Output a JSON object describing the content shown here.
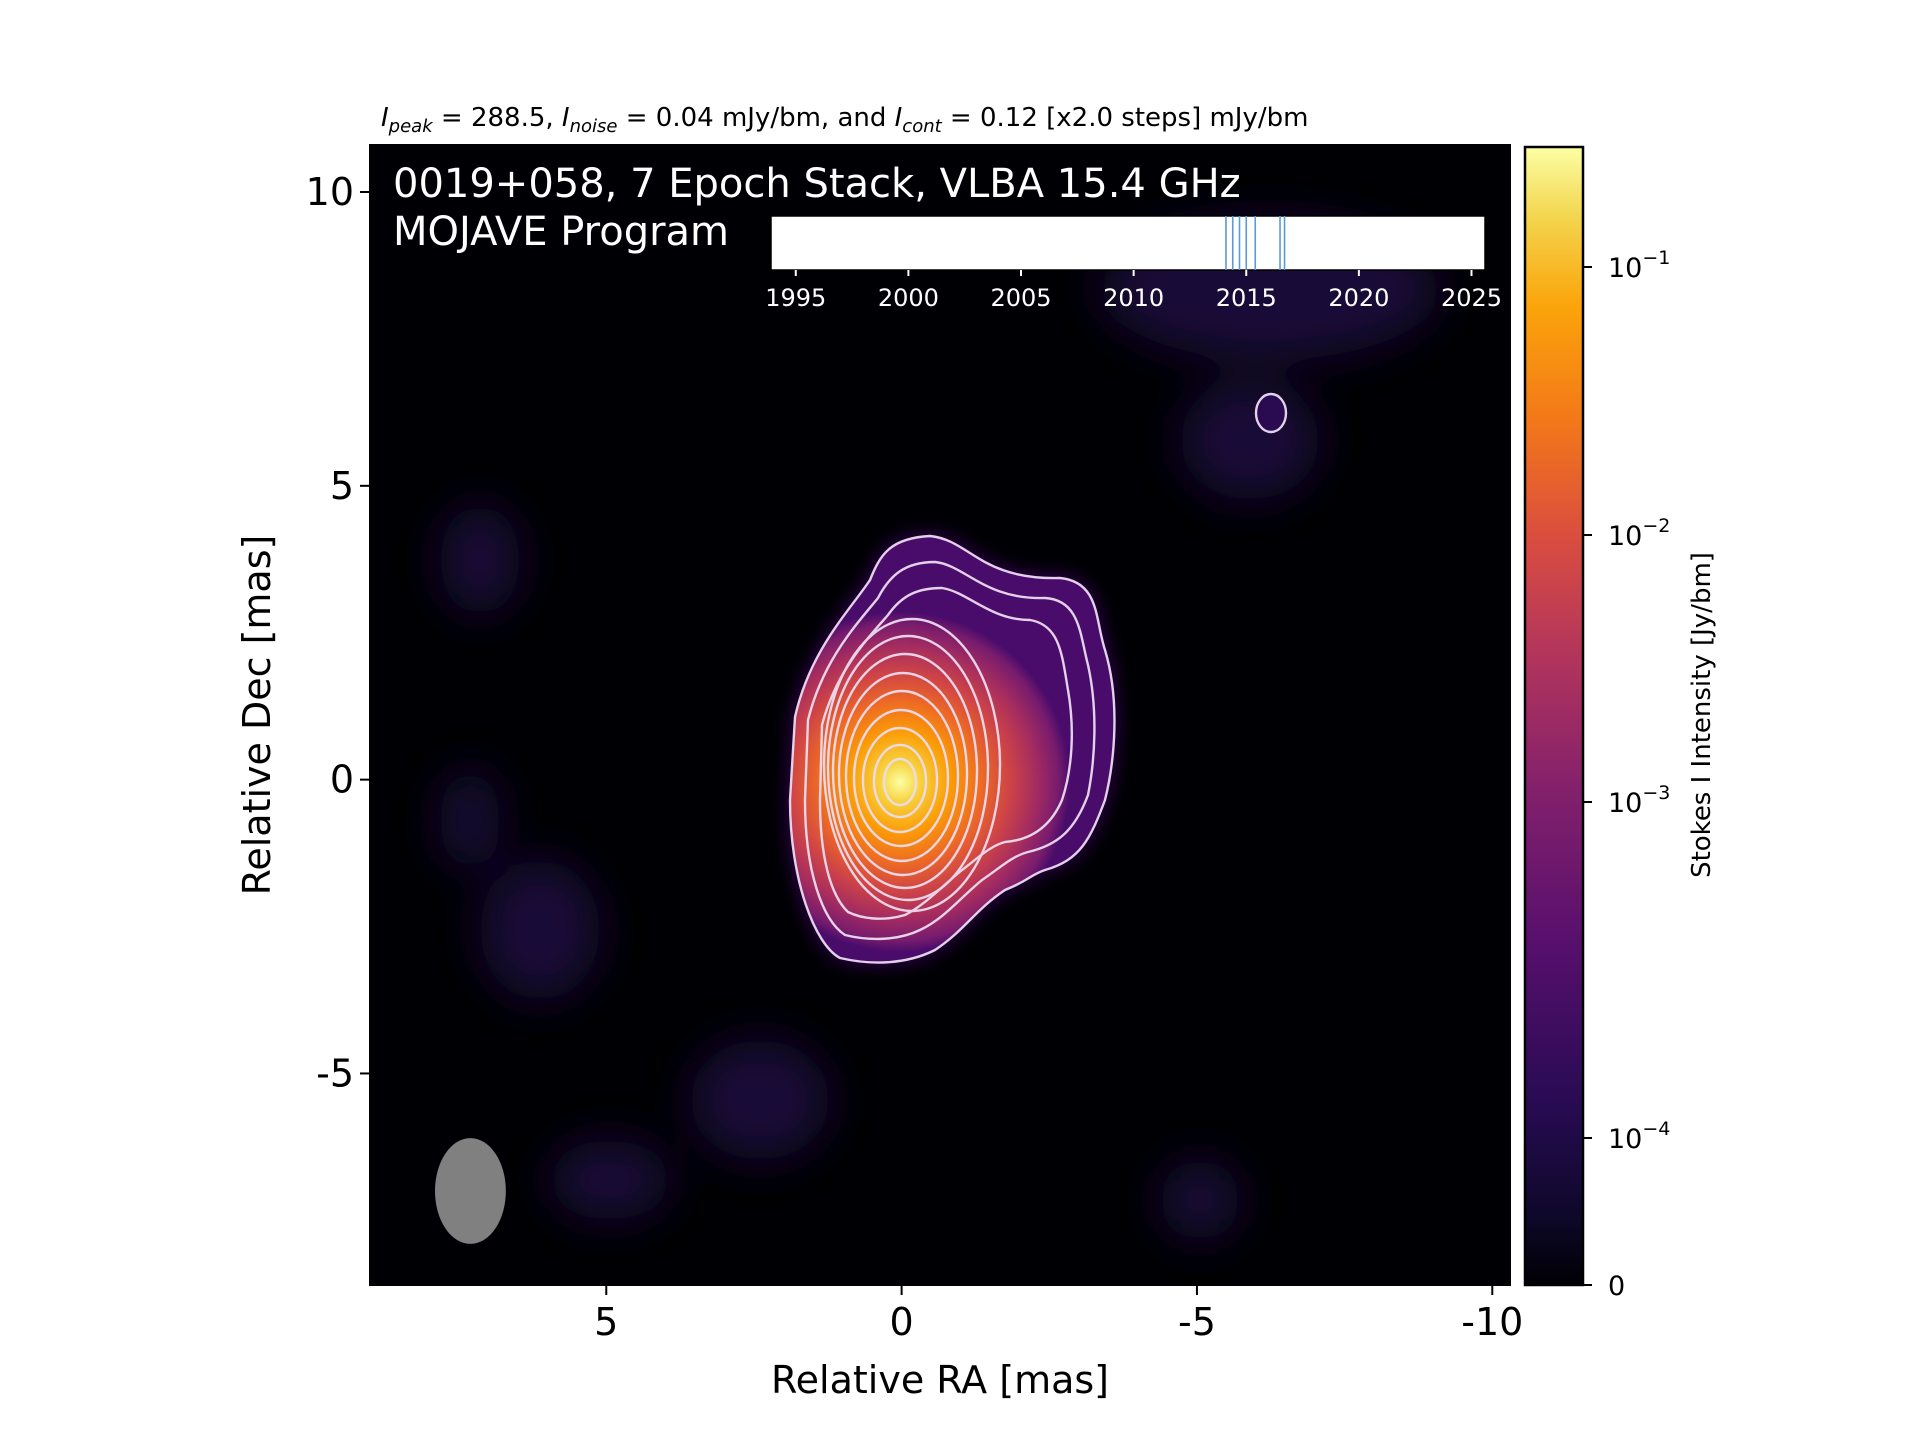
{
  "header": {
    "stats_line": {
      "peak_symbol": "I",
      "peak_sub": "peak",
      "peak_text": " = 288.5, ",
      "noise_symbol": "I",
      "noise_sub": "noise",
      "noise_text": " = 0.04 mJy/bm, and ",
      "cont_symbol": "I",
      "cont_sub": "cont",
      "cont_text": " = 0.12 [x2.0 steps] mJy/bm"
    }
  },
  "overlay": {
    "title_line1": "0019+058, 7 Epoch Stack, VLBA 15.4 GHz",
    "title_line2": "MOJAVE Program"
  },
  "colors": {
    "background": "#000004",
    "contour": "#ecdcf0",
    "beam": "#808080",
    "epoch_marker": "#5b9bd5",
    "colormap": "inferno"
  },
  "chart_data": {
    "type": "heatmap",
    "xlabel": "Relative RA [mas]",
    "ylabel": "Relative Dec [mas]",
    "xlim": [
      9.0,
      -10.3
    ],
    "ylim": [
      -8.6,
      10.8
    ],
    "x_ticks": [
      {
        "value": 5,
        "label": "5"
      },
      {
        "value": 0,
        "label": "0"
      },
      {
        "value": -5,
        "label": "-5"
      },
      {
        "value": -10,
        "label": "-10"
      }
    ],
    "y_ticks": [
      {
        "value": 10,
        "label": "10"
      },
      {
        "value": 5,
        "label": "5"
      },
      {
        "value": 0,
        "label": "0"
      },
      {
        "value": -5,
        "label": "-5"
      }
    ],
    "colorbar": {
      "label": "Stokes I Intensity [Jy/bm]",
      "scale": "log",
      "ticks": [
        {
          "value": 0.1,
          "base": "10",
          "exp": "−1"
        },
        {
          "value": 0.01,
          "base": "10",
          "exp": "−2"
        },
        {
          "value": 0.001,
          "base": "10",
          "exp": "−3"
        },
        {
          "value": 0.0001,
          "base": "10",
          "exp": "−4"
        },
        {
          "value": 0,
          "base": "0",
          "exp": ""
        }
      ]
    },
    "contour_levels_mjy": [
      0.12,
      0.24,
      0.48,
      0.96,
      1.92,
      3.84,
      7.68,
      15.36,
      30.72,
      61.44,
      122.88,
      245.76
    ],
    "peak_mjy": 288.5,
    "beam": {
      "x": 7.3,
      "y": -7.0,
      "major": 1.8,
      "minor": 1.2,
      "pa_deg": 0
    },
    "epoch_timeline": {
      "ticks": [
        {
          "value": 1995,
          "label": "1995"
        },
        {
          "value": 2000,
          "label": "2000"
        },
        {
          "value": 2005,
          "label": "2005"
        },
        {
          "value": 2010,
          "label": "2010"
        },
        {
          "value": 2015,
          "label": "2015"
        },
        {
          "value": 2020,
          "label": "2020"
        },
        {
          "value": 2025,
          "label": "2025"
        }
      ],
      "range": [
        1993.9,
        2025.6
      ],
      "epochs": [
        2014.1,
        2014.4,
        2014.7,
        2015.0,
        2015.4,
        2016.5,
        2016.7
      ]
    }
  }
}
